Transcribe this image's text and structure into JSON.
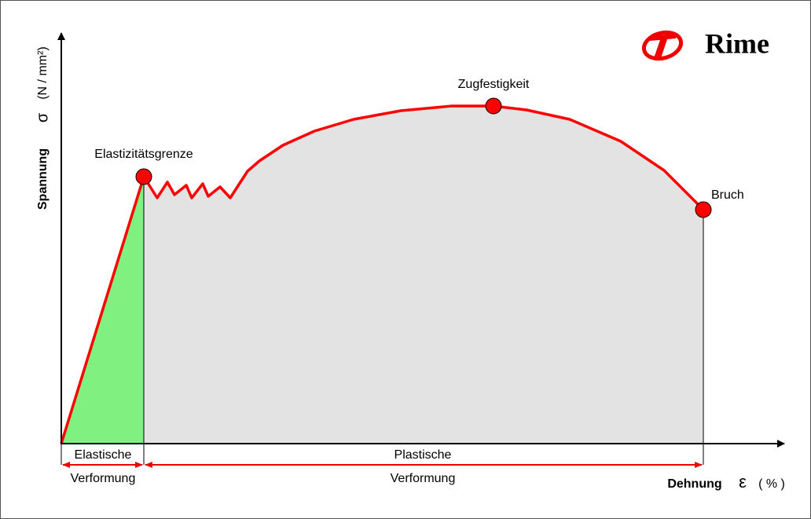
{
  "logo": "Rime",
  "y_axis": {
    "label": "Spannung",
    "symbol": "σ",
    "unit": "(N / mm²)"
  },
  "x_axis": {
    "label": "Dehnung",
    "symbol": "ε",
    "unit": "( % )"
  },
  "points": [
    {
      "label": "Elastizitätsgrenze"
    },
    {
      "label": "Zugfestigkeit"
    },
    {
      "label": "Bruch"
    }
  ],
  "regions": [
    {
      "label": "Elastische",
      "sublabel": "Verformung"
    },
    {
      "label": "Plastische",
      "sublabel": "Verformung"
    }
  ]
}
